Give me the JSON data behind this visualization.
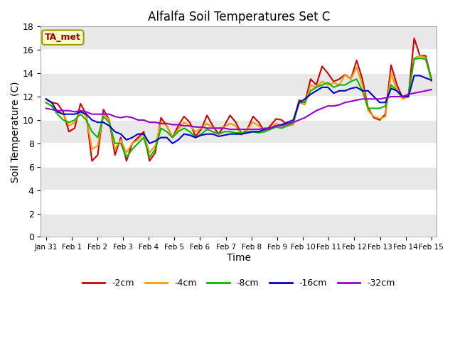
{
  "title": "Alfalfa Soil Temperatures Set C",
  "xlabel": "Time",
  "ylabel": "Soil Temperature (C)",
  "annotation": "TA_met",
  "ylim": [
    0,
    18
  ],
  "yticks": [
    0,
    2,
    4,
    6,
    8,
    10,
    12,
    14,
    16,
    18
  ],
  "fig_bg": "#ffffff",
  "plot_bg": "#ffffff",
  "x_labels": [
    "Jan 31",
    "Feb 1",
    "Feb 2",
    "Feb 3",
    "Feb 4",
    "Feb 5",
    "Feb 6",
    "Feb 7",
    "Feb 8",
    "Feb 9",
    "Feb 10",
    "Feb 11",
    "Feb 12",
    "Feb 13",
    "Feb 14",
    "Feb 15"
  ],
  "series": {
    "-2cm": {
      "color": "#cc0000",
      "data": [
        11.8,
        11.5,
        11.4,
        10.7,
        9.0,
        9.3,
        11.4,
        10.5,
        6.5,
        7.0,
        10.9,
        10.0,
        7.0,
        8.5,
        6.5,
        8.0,
        8.5,
        9.0,
        6.5,
        7.2,
        10.2,
        9.5,
        8.5,
        9.5,
        10.3,
        9.8,
        8.6,
        9.2,
        10.4,
        9.5,
        8.8,
        9.5,
        10.4,
        9.8,
        8.8,
        9.2,
        10.3,
        9.8,
        9.0,
        9.5,
        10.1,
        10.0,
        9.5,
        9.8,
        11.7,
        11.5,
        13.5,
        13.0,
        14.6,
        14.0,
        13.3,
        13.5,
        13.9,
        13.5,
        15.1,
        13.5,
        11.0,
        10.2,
        10.0,
        10.5,
        14.7,
        13.0,
        11.9,
        12.0,
        17.0,
        15.5,
        15.5,
        13.5
      ]
    },
    "-4cm": {
      "color": "#ff9900",
      "data": [
        11.5,
        11.2,
        10.8,
        10.5,
        9.5,
        9.8,
        10.8,
        10.3,
        7.5,
        7.8,
        10.5,
        10.0,
        7.5,
        8.3,
        7.2,
        8.0,
        8.3,
        8.8,
        7.2,
        7.8,
        9.8,
        9.5,
        8.5,
        9.2,
        9.8,
        9.5,
        9.0,
        9.3,
        9.7,
        9.3,
        9.3,
        9.4,
        9.7,
        9.5,
        8.7,
        9.2,
        9.8,
        9.5,
        9.0,
        9.3,
        9.7,
        9.5,
        9.5,
        9.6,
        11.5,
        11.3,
        13.0,
        12.8,
        13.3,
        13.0,
        13.2,
        13.0,
        13.9,
        13.5,
        14.5,
        13.0,
        10.8,
        10.3,
        10.1,
        10.3,
        14.0,
        12.5,
        11.8,
        12.0,
        15.3,
        15.5,
        15.3,
        13.3
      ]
    },
    "-8cm": {
      "color": "#00bb00",
      "data": [
        11.5,
        11.2,
        10.5,
        10.0,
        9.8,
        10.0,
        10.5,
        10.0,
        9.0,
        8.5,
        10.3,
        9.8,
        8.0,
        8.0,
        6.8,
        7.5,
        8.0,
        8.5,
        6.8,
        7.5,
        9.3,
        9.0,
        8.5,
        9.0,
        9.3,
        9.0,
        8.5,
        8.8,
        9.2,
        9.0,
        8.8,
        9.0,
        9.0,
        8.9,
        8.9,
        9.0,
        9.0,
        8.9,
        9.0,
        9.2,
        9.4,
        9.3,
        9.5,
        9.8,
        11.5,
        11.5,
        12.5,
        12.8,
        13.0,
        13.2,
        12.8,
        13.0,
        13.0,
        13.3,
        13.5,
        12.5,
        11.0,
        11.0,
        11.0,
        11.2,
        13.0,
        12.5,
        12.0,
        12.2,
        15.2,
        15.3,
        15.2,
        13.5
      ]
    },
    "-16cm": {
      "color": "#0000cc",
      "data": [
        11.8,
        11.5,
        10.7,
        10.5,
        10.5,
        10.5,
        10.7,
        10.5,
        10.0,
        9.8,
        9.8,
        9.5,
        9.0,
        8.8,
        8.3,
        8.5,
        8.8,
        8.8,
        8.0,
        8.2,
        8.5,
        8.5,
        8.0,
        8.3,
        8.8,
        8.7,
        8.5,
        8.7,
        8.8,
        8.8,
        8.6,
        8.7,
        8.8,
        8.8,
        8.8,
        8.9,
        9.0,
        9.0,
        9.2,
        9.3,
        9.5,
        9.6,
        9.8,
        10.0,
        11.5,
        11.8,
        12.2,
        12.5,
        12.8,
        12.8,
        12.3,
        12.5,
        12.5,
        12.7,
        12.8,
        12.5,
        12.5,
        12.0,
        11.5,
        11.5,
        12.7,
        12.5,
        12.0,
        12.0,
        13.8,
        13.8,
        13.6,
        13.4
      ]
    },
    "-32cm": {
      "color": "#9900cc",
      "data": [
        11.0,
        10.9,
        10.8,
        10.8,
        10.8,
        10.7,
        10.8,
        10.7,
        10.5,
        10.5,
        10.5,
        10.5,
        10.3,
        10.2,
        10.3,
        10.2,
        10.0,
        10.0,
        9.8,
        9.8,
        9.7,
        9.7,
        9.6,
        9.6,
        9.5,
        9.5,
        9.4,
        9.4,
        9.3,
        9.3,
        9.3,
        9.3,
        9.2,
        9.2,
        9.2,
        9.2,
        9.2,
        9.2,
        9.3,
        9.3,
        9.5,
        9.5,
        9.7,
        9.8,
        10.0,
        10.2,
        10.5,
        10.8,
        11.0,
        11.2,
        11.2,
        11.3,
        11.5,
        11.6,
        11.7,
        11.8,
        11.8,
        11.8,
        11.8,
        11.9,
        12.0,
        12.0,
        12.0,
        12.2,
        12.3,
        12.4,
        12.5,
        12.6
      ]
    }
  }
}
